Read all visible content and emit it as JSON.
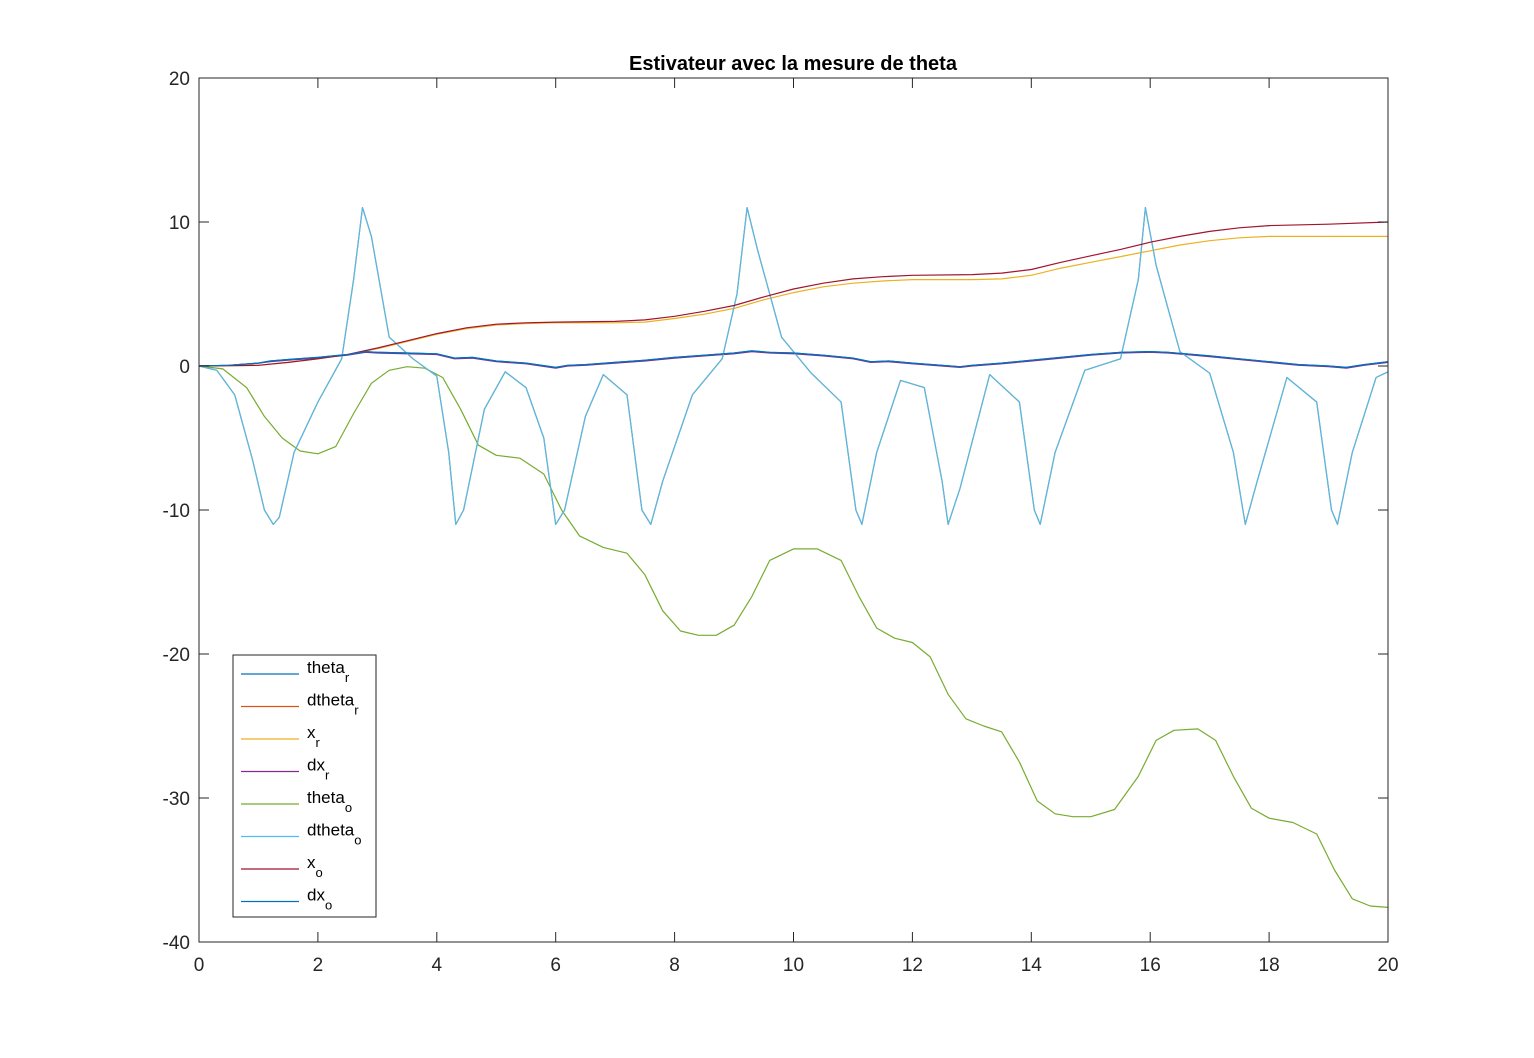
{
  "chart_data": {
    "type": "line",
    "title": "Estivateur avec la mesure de theta",
    "xlabel": "",
    "ylabel": "",
    "xlim": [
      0,
      20
    ],
    "ylim": [
      -40,
      20
    ],
    "xticks": [
      0,
      2,
      4,
      6,
      8,
      10,
      12,
      14,
      16,
      18,
      20
    ],
    "yticks": [
      -40,
      -30,
      -20,
      -10,
      0,
      10,
      20
    ],
    "grid": false,
    "legend_position": "bottom-left",
    "series": [
      {
        "name": "theta",
        "name_sub": "r",
        "color": "#0072BD",
        "x": [
          0,
          0.5,
          1,
          1.2,
          1.5,
          2,
          2.5,
          2.8,
          3,
          3.5,
          4,
          4.3,
          4.6,
          5,
          5.5,
          6,
          6.2,
          6.5,
          7,
          7.5,
          8,
          8.5,
          9,
          9.3,
          9.6,
          10,
          10.5,
          11,
          11.3,
          11.6,
          12,
          12.5,
          12.8,
          13,
          13.5,
          14,
          14.5,
          15,
          15.5,
          16,
          16.3,
          16.6,
          17,
          17.5,
          18,
          18.5,
          19,
          19.3,
          19.6,
          20
        ],
        "y": [
          0,
          0.05,
          0.2,
          0.35,
          0.45,
          0.6,
          0.8,
          1.0,
          0.95,
          0.9,
          0.85,
          0.55,
          0.6,
          0.35,
          0.2,
          -0.1,
          0.05,
          0.1,
          0.25,
          0.4,
          0.6,
          0.75,
          0.9,
          1.05,
          0.95,
          0.9,
          0.75,
          0.55,
          0.3,
          0.35,
          0.2,
          0.05,
          -0.05,
          0.05,
          0.2,
          0.4,
          0.6,
          0.8,
          0.95,
          1.0,
          0.95,
          0.85,
          0.7,
          0.5,
          0.3,
          0.1,
          0.0,
          -0.1,
          0.1,
          0.3
        ]
      },
      {
        "name": "dtheta",
        "name_sub": "r",
        "color": "#D95319",
        "x": [
          0,
          0.3,
          0.6,
          0.9,
          1.1,
          1.25,
          1.35,
          1.6,
          2.0,
          2.4,
          2.6,
          2.75,
          2.9,
          3.2,
          3.6,
          4.0,
          4.2,
          4.32,
          4.45,
          4.8,
          5.15,
          5.5,
          5.8,
          6.0,
          6.15,
          6.5,
          6.8,
          7.2,
          7.45,
          7.6,
          7.8,
          8.3,
          8.8,
          9.05,
          9.22,
          9.4,
          9.8,
          10.3,
          10.8,
          11.05,
          11.15,
          11.4,
          11.8,
          12.2,
          12.5,
          12.6,
          12.8,
          13.3,
          13.8,
          14.05,
          14.15,
          14.4,
          14.9,
          15.5,
          15.8,
          15.92,
          16.1,
          16.5,
          17.0,
          17.4,
          17.6,
          17.8,
          18.3,
          18.8,
          19.05,
          19.15,
          19.4,
          19.8,
          20
        ],
        "y": [
          0,
          -0.3,
          -2.0,
          -6.5,
          -10.0,
          -11.0,
          -10.5,
          -6.0,
          -2.5,
          0.5,
          6.0,
          11.0,
          9.0,
          2.0,
          0.5,
          -0.7,
          -6.0,
          -11.0,
          -10.0,
          -3.0,
          -0.4,
          -1.5,
          -5.0,
          -11.0,
          -10.0,
          -3.5,
          -0.6,
          -2.0,
          -10.0,
          -11.0,
          -8.0,
          -2.0,
          0.5,
          5.0,
          11.0,
          8.0,
          2.0,
          -0.5,
          -2.5,
          -10.0,
          -11.0,
          -6.0,
          -1.0,
          -1.5,
          -8.0,
          -11.0,
          -8.5,
          -0.6,
          -2.5,
          -10.0,
          -11.0,
          -6.0,
          -0.3,
          0.5,
          6.0,
          11.0,
          7.0,
          1.0,
          -0.5,
          -6.0,
          -11.0,
          -8.0,
          -0.8,
          -2.5,
          -10.0,
          -11.0,
          -6.0,
          -0.8,
          -0.4
        ]
      },
      {
        "name": "x",
        "name_sub": "r",
        "color": "#EDB120",
        "x": [
          0,
          1,
          1.5,
          2,
          2.5,
          3,
          3.5,
          4,
          4.5,
          5,
          5.5,
          6,
          7,
          7.5,
          8,
          8.5,
          9,
          9.5,
          10,
          10.5,
          11,
          11.5,
          12,
          13,
          13.5,
          14,
          14.5,
          15,
          15.5,
          16,
          16.5,
          17,
          17.5,
          18,
          19,
          20
        ],
        "y": [
          0,
          0.05,
          0.25,
          0.5,
          0.8,
          1.2,
          1.7,
          2.2,
          2.6,
          2.85,
          2.95,
          3.0,
          3.0,
          3.05,
          3.3,
          3.6,
          4.0,
          4.6,
          5.1,
          5.5,
          5.75,
          5.9,
          6.0,
          6.0,
          6.05,
          6.3,
          6.8,
          7.2,
          7.6,
          8.0,
          8.4,
          8.7,
          8.9,
          9.0,
          9.0,
          9.0
        ]
      },
      {
        "name": "dx",
        "name_sub": "r",
        "color": "#7E2F8E",
        "x": [
          0,
          0.5,
          1,
          1.2,
          1.5,
          2,
          2.5,
          2.8,
          3,
          3.5,
          4,
          4.3,
          4.6,
          5,
          5.5,
          6,
          6.2,
          6.5,
          7,
          7.5,
          8,
          8.5,
          9,
          9.3,
          9.6,
          10,
          10.5,
          11,
          11.3,
          11.6,
          12,
          12.5,
          12.8,
          13,
          13.5,
          14,
          14.5,
          15,
          15.5,
          16,
          16.3,
          16.6,
          17,
          17.5,
          18,
          18.5,
          19,
          19.3,
          19.6,
          20
        ],
        "y": [
          0,
          0.05,
          0.2,
          0.3,
          0.4,
          0.55,
          0.75,
          0.95,
          0.9,
          0.85,
          0.8,
          0.5,
          0.55,
          0.3,
          0.15,
          -0.15,
          0.0,
          0.05,
          0.2,
          0.35,
          0.55,
          0.7,
          0.85,
          1.0,
          0.9,
          0.85,
          0.7,
          0.5,
          0.25,
          0.3,
          0.15,
          0.0,
          -0.1,
          0.0,
          0.15,
          0.35,
          0.55,
          0.75,
          0.9,
          0.95,
          0.9,
          0.8,
          0.65,
          0.45,
          0.25,
          0.05,
          -0.05,
          -0.15,
          0.05,
          0.25
        ]
      },
      {
        "name": "theta",
        "name_sub": "o",
        "color": "#77AC30",
        "x": [
          0,
          0.4,
          0.8,
          1.1,
          1.4,
          1.7,
          2.0,
          2.3,
          2.6,
          2.9,
          3.2,
          3.5,
          3.8,
          4.1,
          4.4,
          4.7,
          5.0,
          5.4,
          5.8,
          6.1,
          6.4,
          6.8,
          7.2,
          7.5,
          7.8,
          8.1,
          8.4,
          8.7,
          9.0,
          9.3,
          9.6,
          10.0,
          10.4,
          10.8,
          11.1,
          11.4,
          11.7,
          12.0,
          12.3,
          12.6,
          12.9,
          13.2,
          13.5,
          13.8,
          14.1,
          14.4,
          14.7,
          15.0,
          15.4,
          15.8,
          16.1,
          16.4,
          16.8,
          17.1,
          17.4,
          17.7,
          18.0,
          18.4,
          18.8,
          19.1,
          19.4,
          19.7,
          20.0
        ],
        "y": [
          0,
          -0.2,
          -1.5,
          -3.5,
          -5.0,
          -5.9,
          -6.1,
          -5.6,
          -3.3,
          -1.2,
          -0.3,
          -0.05,
          -0.15,
          -0.8,
          -3.0,
          -5.5,
          -6.2,
          -6.4,
          -7.5,
          -10.0,
          -11.8,
          -12.6,
          -13.0,
          -14.5,
          -17.0,
          -18.4,
          -18.7,
          -18.7,
          -18.0,
          -16.0,
          -13.5,
          -12.7,
          -12.7,
          -13.5,
          -16.0,
          -18.2,
          -18.9,
          -19.2,
          -20.2,
          -22.8,
          -24.5,
          -25.0,
          -25.4,
          -27.5,
          -30.2,
          -31.1,
          -31.3,
          -31.3,
          -30.8,
          -28.5,
          -26.0,
          -25.3,
          -25.2,
          -26.0,
          -28.5,
          -30.7,
          -31.4,
          -31.7,
          -32.5,
          -35.0,
          -37.0,
          -37.5,
          -37.6
        ]
      },
      {
        "name": "dtheta",
        "name_sub": "o",
        "color": "#4DBEEE",
        "x": [
          0,
          0.3,
          0.6,
          0.9,
          1.1,
          1.25,
          1.35,
          1.6,
          2.0,
          2.4,
          2.6,
          2.75,
          2.9,
          3.2,
          3.6,
          4.0,
          4.2,
          4.32,
          4.45,
          4.8,
          5.15,
          5.5,
          5.8,
          6.0,
          6.15,
          6.5,
          6.8,
          7.2,
          7.45,
          7.6,
          7.8,
          8.3,
          8.8,
          9.05,
          9.22,
          9.4,
          9.8,
          10.3,
          10.8,
          11.05,
          11.15,
          11.4,
          11.8,
          12.2,
          12.5,
          12.6,
          12.8,
          13.3,
          13.8,
          14.05,
          14.15,
          14.4,
          14.9,
          15.5,
          15.8,
          15.92,
          16.1,
          16.5,
          17.0,
          17.4,
          17.6,
          17.8,
          18.3,
          18.8,
          19.05,
          19.15,
          19.4,
          19.8,
          20
        ],
        "y": [
          0,
          -0.3,
          -2.0,
          -6.5,
          -10.0,
          -11.0,
          -10.5,
          -6.0,
          -2.5,
          0.5,
          6.0,
          11.0,
          9.0,
          2.0,
          0.5,
          -0.7,
          -6.0,
          -11.0,
          -10.0,
          -3.0,
          -0.4,
          -1.5,
          -5.0,
          -11.0,
          -10.0,
          -3.5,
          -0.6,
          -2.0,
          -10.0,
          -11.0,
          -8.0,
          -2.0,
          0.5,
          5.0,
          11.0,
          8.0,
          2.0,
          -0.5,
          -2.5,
          -10.0,
          -11.0,
          -6.0,
          -1.0,
          -1.5,
          -8.0,
          -11.0,
          -8.5,
          -0.6,
          -2.5,
          -10.0,
          -11.0,
          -6.0,
          -0.3,
          0.5,
          6.0,
          11.0,
          7.0,
          1.0,
          -0.5,
          -6.0,
          -11.0,
          -8.0,
          -0.8,
          -2.5,
          -10.0,
          -11.0,
          -6.0,
          -0.8,
          -0.4
        ]
      },
      {
        "name": "x",
        "name_sub": "o",
        "color": "#A2142F",
        "x": [
          0,
          1,
          1.5,
          2,
          2.5,
          3,
          3.5,
          4,
          4.5,
          5,
          5.5,
          6,
          7,
          7.5,
          8,
          8.5,
          9,
          9.5,
          10,
          10.5,
          11,
          11.5,
          12,
          13,
          13.5,
          14,
          14.5,
          15,
          15.5,
          16,
          16.5,
          17,
          17.5,
          18,
          19,
          20
        ],
        "y": [
          0,
          0.05,
          0.25,
          0.5,
          0.8,
          1.25,
          1.75,
          2.25,
          2.65,
          2.9,
          3.0,
          3.05,
          3.1,
          3.2,
          3.45,
          3.8,
          4.2,
          4.8,
          5.35,
          5.75,
          6.05,
          6.2,
          6.3,
          6.35,
          6.45,
          6.7,
          7.2,
          7.65,
          8.1,
          8.6,
          9.0,
          9.35,
          9.6,
          9.75,
          9.85,
          10.0
        ]
      },
      {
        "name": "dx",
        "name_sub": "o",
        "color": "#0072BD",
        "x": [
          0,
          0.5,
          1,
          1.2,
          1.5,
          2,
          2.5,
          2.8,
          3,
          3.5,
          4,
          4.3,
          4.6,
          5,
          5.5,
          6,
          6.2,
          6.5,
          7,
          7.5,
          8,
          8.5,
          9,
          9.3,
          9.6,
          10,
          10.5,
          11,
          11.3,
          11.6,
          12,
          12.5,
          12.8,
          13,
          13.5,
          14,
          14.5,
          15,
          15.5,
          16,
          16.3,
          16.6,
          17,
          17.5,
          18,
          18.5,
          19,
          19.3,
          19.6,
          20
        ],
        "y": [
          0,
          0.05,
          0.2,
          0.35,
          0.45,
          0.6,
          0.8,
          1.0,
          0.95,
          0.9,
          0.85,
          0.55,
          0.6,
          0.35,
          0.2,
          -0.1,
          0.05,
          0.1,
          0.25,
          0.4,
          0.6,
          0.75,
          0.9,
          1.05,
          0.95,
          0.9,
          0.75,
          0.55,
          0.3,
          0.35,
          0.2,
          0.05,
          -0.05,
          0.05,
          0.2,
          0.4,
          0.6,
          0.8,
          0.95,
          1.0,
          0.95,
          0.85,
          0.7,
          0.5,
          0.3,
          0.1,
          0.0,
          -0.1,
          0.1,
          0.3
        ]
      }
    ]
  }
}
